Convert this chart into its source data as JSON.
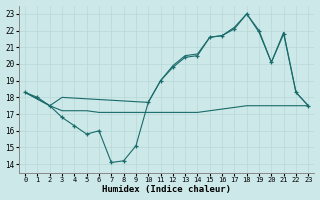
{
  "xlabel": "Humidex (Indice chaleur)",
  "bg_color": "#cce8e8",
  "line_color": "#1a6b6b",
  "xlim": [
    -0.5,
    23.5
  ],
  "ylim": [
    13.5,
    23.5
  ],
  "xticks": [
    0,
    1,
    2,
    3,
    4,
    5,
    6,
    7,
    8,
    9,
    10,
    11,
    12,
    13,
    14,
    15,
    16,
    17,
    18,
    19,
    20,
    21,
    22,
    23
  ],
  "yticks": [
    14,
    15,
    16,
    17,
    18,
    19,
    20,
    21,
    22,
    23
  ],
  "series1_x": [
    0,
    1,
    2,
    3,
    4,
    5,
    6,
    7,
    8,
    9,
    10,
    11,
    12,
    13,
    14,
    15,
    16,
    17,
    18,
    19,
    20,
    21,
    22,
    23
  ],
  "series1_y": [
    18.3,
    18.0,
    17.5,
    16.8,
    16.3,
    15.8,
    16.0,
    14.1,
    14.2,
    15.1,
    17.7,
    19.0,
    19.8,
    20.4,
    20.5,
    21.6,
    21.7,
    22.1,
    23.0,
    22.0,
    20.1,
    21.8,
    18.3,
    17.5
  ],
  "series2_x": [
    0,
    2,
    3,
    10,
    11,
    12,
    13,
    14,
    15,
    16,
    17,
    18,
    19,
    20,
    21,
    22,
    23
  ],
  "series2_y": [
    18.3,
    17.5,
    18.0,
    17.7,
    19.0,
    19.9,
    20.5,
    20.6,
    21.6,
    21.7,
    22.2,
    23.0,
    21.9,
    20.1,
    21.9,
    18.3,
    17.5
  ],
  "series3_x": [
    0,
    1,
    2,
    3,
    4,
    5,
    6,
    7,
    8,
    9,
    10,
    11,
    12,
    13,
    14,
    15,
    16,
    17,
    18,
    19,
    20,
    21,
    22,
    23
  ],
  "series3_y": [
    18.3,
    17.9,
    17.5,
    17.2,
    17.2,
    17.2,
    17.1,
    17.1,
    17.1,
    17.1,
    17.1,
    17.1,
    17.1,
    17.1,
    17.1,
    17.2,
    17.3,
    17.4,
    17.5,
    17.5,
    17.5,
    17.5,
    17.5,
    17.5
  ]
}
